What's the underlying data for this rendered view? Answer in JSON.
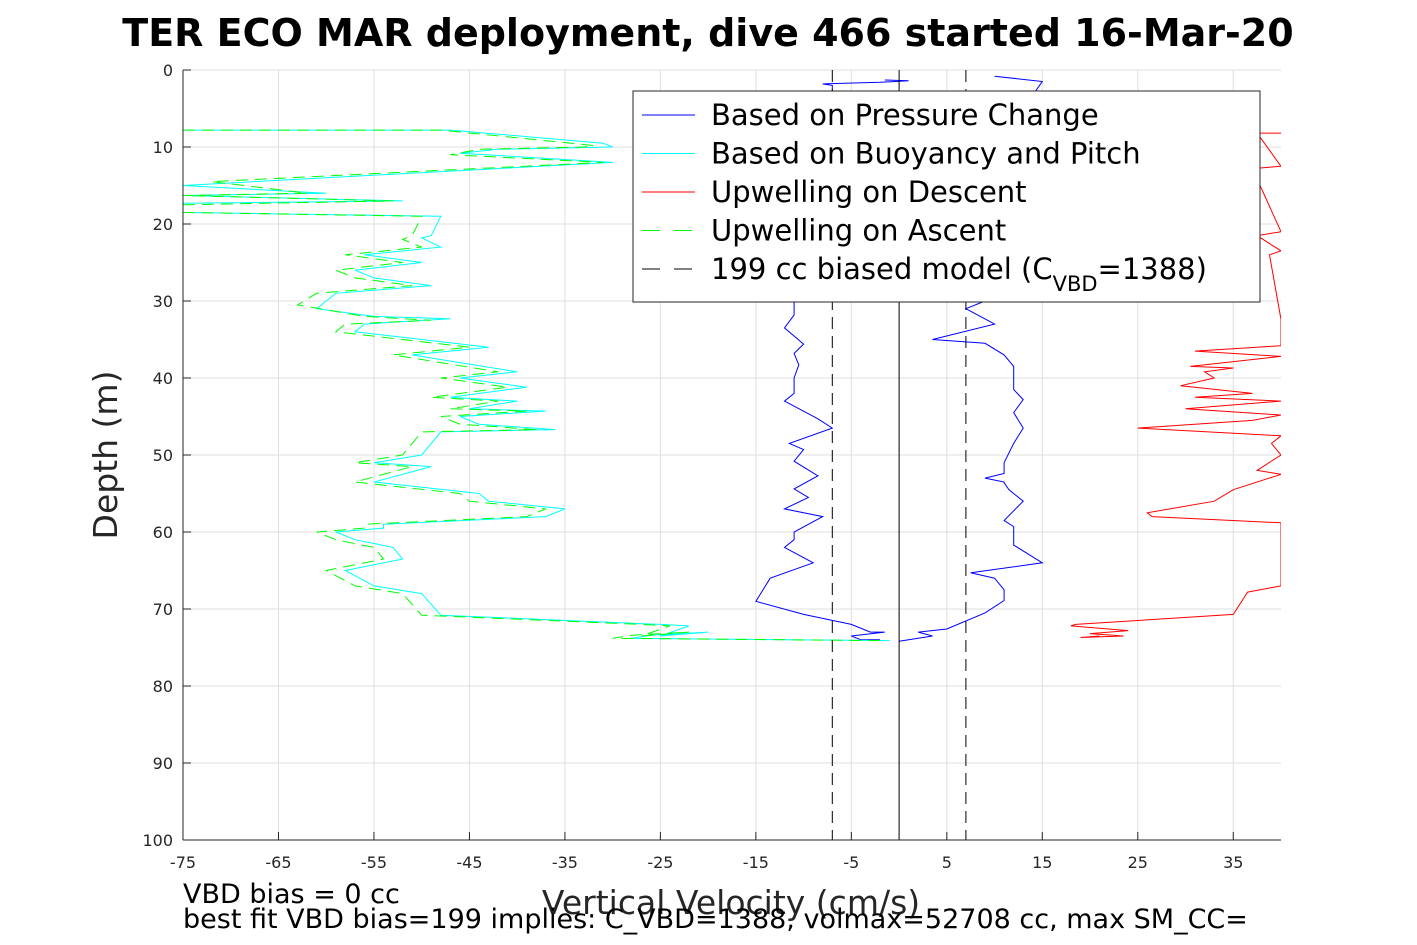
{
  "chart_data": {
    "type": "line",
    "title": "TER ECO MAR deployment, dive 466 started 16-Mar-20",
    "xlabel": "Vertical Velocity (cm/s)",
    "ylabel": "Depth (m)",
    "xlim": [
      -75,
      40
    ],
    "ylim": [
      0,
      100
    ],
    "y_reversed": true,
    "grid": true,
    "xticks": [
      -75,
      -65,
      -55,
      -45,
      -35,
      -25,
      -15,
      -5,
      5,
      15,
      25,
      35
    ],
    "yticks": [
      0,
      10,
      20,
      30,
      40,
      50,
      60,
      70,
      80,
      90,
      100
    ],
    "legend": {
      "placement": "top-right",
      "entries": [
        {
          "text": "Based on Pressure Change",
          "color": "#0000ff",
          "dash": "solid"
        },
        {
          "text": "Based on Buoyancy and Pitch",
          "color": "#00ffff",
          "dash": "solid"
        },
        {
          "text": "Upwelling on Descent",
          "color": "#ff0000",
          "dash": "solid"
        },
        {
          "text": "Upwelling on Ascent",
          "color": "#00ff00",
          "dash": "dashed"
        },
        {
          "text": "199 cc biased model (C",
          "sub": "VBD",
          "suffix": "=1388)",
          "color": "#000000",
          "dash": "dashed"
        }
      ]
    },
    "footnotes": [
      "VBD bias = 0 cc",
      "best fit VBD bias=199 implies: C_VBD=1388, volmax=52708 cc, max SM_CC="
    ],
    "series": [
      {
        "name": "Based on Pressure Change (descent)",
        "color": "#0000ff",
        "dash": "solid",
        "points": [
          [
            -1.5,
            1.3
          ],
          [
            1,
            1.4
          ],
          [
            -2,
            1.6
          ],
          [
            -8,
            1.8
          ],
          [
            -7,
            2
          ],
          [
            -7,
            20
          ],
          [
            -6.5,
            28
          ],
          [
            -11,
            30
          ],
          [
            -11,
            31
          ],
          [
            -11,
            31.8
          ],
          [
            -12,
            33.5
          ],
          [
            -10,
            35.6
          ],
          [
            -11,
            36.8
          ],
          [
            -10.5,
            38.3
          ],
          [
            -11,
            40
          ],
          [
            -11,
            42
          ],
          [
            -12,
            43
          ],
          [
            -8.5,
            45.3
          ],
          [
            -7,
            46.5
          ],
          [
            -11.5,
            48.5
          ],
          [
            -10,
            49.3
          ],
          [
            -11,
            50.8
          ],
          [
            -8.5,
            52.7
          ],
          [
            -11,
            54.4
          ],
          [
            -9.5,
            55.5
          ],
          [
            -12,
            57
          ],
          [
            -8,
            58
          ],
          [
            -11,
            60
          ],
          [
            -11,
            61
          ],
          [
            -12,
            62
          ],
          [
            -9,
            64
          ],
          [
            -13.5,
            66
          ],
          [
            -15,
            69
          ],
          [
            -10,
            70.7
          ],
          [
            -5,
            72
          ],
          [
            -3,
            73
          ],
          [
            -1.5,
            73
          ],
          [
            -5,
            73.5
          ],
          [
            -4,
            74
          ],
          [
            -2,
            74
          ]
        ]
      },
      {
        "name": "Based on Pressure Change (ascent)",
        "color": "#0000ff",
        "dash": "solid",
        "points": [
          [
            0,
            74.2
          ],
          [
            3.5,
            73.5
          ],
          [
            2,
            73
          ],
          [
            5,
            72.6
          ],
          [
            9,
            70.5
          ],
          [
            11,
            68.9
          ],
          [
            11,
            67.5
          ],
          [
            10,
            66
          ],
          [
            7.5,
            65.3
          ],
          [
            15,
            64
          ],
          [
            12,
            61.7
          ],
          [
            12,
            59.3
          ],
          [
            11,
            58.5
          ],
          [
            13,
            56
          ],
          [
            11.5,
            54.5
          ],
          [
            11,
            53.6
          ],
          [
            11,
            53.5
          ],
          [
            9,
            53
          ],
          [
            11,
            52.4
          ],
          [
            11,
            51
          ],
          [
            12,
            48.5
          ],
          [
            13,
            46.5
          ],
          [
            12,
            44.5
          ],
          [
            13,
            42.8
          ],
          [
            12,
            41.5
          ],
          [
            12,
            38.5
          ],
          [
            11,
            37
          ],
          [
            9,
            35.5
          ],
          [
            3.5,
            35
          ],
          [
            10,
            33
          ],
          [
            7,
            31
          ],
          [
            9,
            30
          ],
          [
            6.5,
            28
          ],
          [
            7,
            25
          ],
          [
            5,
            20
          ],
          [
            6,
            15
          ],
          [
            9,
            10
          ],
          [
            13,
            5
          ],
          [
            15,
            1.5
          ],
          [
            10,
            0.8
          ]
        ]
      },
      {
        "name": "Based on Buoyancy and Pitch",
        "color": "#00ffff",
        "dash": "solid",
        "points": [
          [
            -75,
            7.8
          ],
          [
            -47,
            7.8
          ],
          [
            -31,
            9.5
          ],
          [
            -30,
            10
          ],
          [
            -42,
            10.3
          ],
          [
            -46,
            10.8
          ],
          [
            -30,
            12
          ],
          [
            -75,
            15
          ],
          [
            -60,
            16
          ],
          [
            -75,
            16.3
          ],
          [
            -52,
            17
          ],
          [
            -75,
            17.3
          ],
          [
            -75,
            18.5
          ],
          [
            -48,
            19
          ],
          [
            -49,
            21.5
          ],
          [
            -50,
            21.8
          ],
          [
            -48,
            23
          ],
          [
            -56,
            24
          ],
          [
            -50,
            25
          ],
          [
            -57,
            26
          ],
          [
            -55,
            27
          ],
          [
            -49,
            28
          ],
          [
            -59,
            29
          ],
          [
            -60,
            30
          ],
          [
            -61,
            31
          ],
          [
            -55,
            32
          ],
          [
            -47,
            32.3
          ],
          [
            -56,
            33
          ],
          [
            -57,
            34
          ],
          [
            -43,
            36
          ],
          [
            -51,
            37
          ],
          [
            -46,
            38
          ],
          [
            -40,
            39.2
          ],
          [
            -46,
            40
          ],
          [
            -39,
            41.2
          ],
          [
            -47,
            42.5
          ],
          [
            -40,
            43
          ],
          [
            -45,
            44
          ],
          [
            -37,
            44.3
          ],
          [
            -46,
            45
          ],
          [
            -44,
            46
          ],
          [
            -36,
            46.7
          ],
          [
            -48,
            47
          ],
          [
            -50,
            50
          ],
          [
            -55,
            51
          ],
          [
            -49,
            51.5
          ],
          [
            -55,
            53.5
          ],
          [
            -44,
            55
          ],
          [
            -43,
            56
          ],
          [
            -35,
            57
          ],
          [
            -37,
            58
          ],
          [
            -54,
            59
          ],
          [
            -54,
            59.5
          ],
          [
            -59,
            60
          ],
          [
            -57,
            61
          ],
          [
            -53,
            62
          ],
          [
            -52,
            63.5
          ],
          [
            -58,
            65
          ],
          [
            -55,
            67
          ],
          [
            -50,
            68
          ],
          [
            -48,
            70.8
          ],
          [
            -25,
            72
          ],
          [
            -22,
            72.2
          ],
          [
            -25,
            73.5
          ],
          [
            -20,
            73
          ],
          [
            -26,
            73.4
          ],
          [
            -28,
            73.8
          ],
          [
            -1,
            74.1
          ]
        ]
      },
      {
        "name": "Upwelling on Ascent",
        "color": "#00ff00",
        "dash": "dashed",
        "points": [
          [
            -75,
            7.8
          ],
          [
            -48,
            7.8
          ],
          [
            -32,
            9.8
          ],
          [
            -33,
            10
          ],
          [
            -44,
            10.3
          ],
          [
            -47,
            11
          ],
          [
            -31,
            12
          ],
          [
            -72,
            14.5
          ],
          [
            -62,
            16
          ],
          [
            -75,
            16.3
          ],
          [
            -53,
            17
          ],
          [
            -75,
            17.5
          ],
          [
            -75,
            18.5
          ],
          [
            -50,
            19
          ],
          [
            -51,
            21.5
          ],
          [
            -52,
            22
          ],
          [
            -50,
            23
          ],
          [
            -58,
            24
          ],
          [
            -52,
            25
          ],
          [
            -59,
            26
          ],
          [
            -57,
            27
          ],
          [
            -51,
            28
          ],
          [
            -61,
            29
          ],
          [
            -63,
            30.5
          ],
          [
            -56,
            32
          ],
          [
            -49,
            32.5
          ],
          [
            -58,
            33
          ],
          [
            -59,
            34
          ],
          [
            -45,
            36
          ],
          [
            -53,
            37
          ],
          [
            -48,
            38
          ],
          [
            -42,
            39.2
          ],
          [
            -48,
            40
          ],
          [
            -41,
            41.2
          ],
          [
            -49,
            42.5
          ],
          [
            -42,
            43
          ],
          [
            -47,
            44
          ],
          [
            -39,
            44.3
          ],
          [
            -48,
            45
          ],
          [
            -46,
            46
          ],
          [
            -38,
            46.7
          ],
          [
            -50,
            47
          ],
          [
            -52,
            50
          ],
          [
            -57,
            51
          ],
          [
            -51,
            51.5
          ],
          [
            -57,
            53.5
          ],
          [
            -46,
            55
          ],
          [
            -45,
            56
          ],
          [
            -37,
            57
          ],
          [
            -39,
            58
          ],
          [
            -56,
            59
          ],
          [
            -56,
            59.5
          ],
          [
            -61,
            60
          ],
          [
            -59,
            61
          ],
          [
            -55,
            62
          ],
          [
            -54,
            63.5
          ],
          [
            -60,
            65
          ],
          [
            -57,
            67
          ],
          [
            -52,
            68
          ],
          [
            -50,
            70.8
          ],
          [
            -27,
            72
          ],
          [
            -24,
            72.2
          ],
          [
            -27,
            73.5
          ],
          [
            -22,
            73
          ],
          [
            -28,
            73.4
          ],
          [
            -30,
            73.8
          ],
          [
            -2,
            74.1
          ]
        ]
      },
      {
        "name": "Upwelling on Descent",
        "color": "#ff0000",
        "dash": "solid",
        "points": [
          [
            40,
            8.2
          ],
          [
            37.5,
            8.2
          ],
          [
            40,
            12.5
          ],
          [
            37,
            12.8
          ],
          [
            40,
            21
          ],
          [
            37.5,
            21.5
          ],
          [
            40,
            23.5
          ],
          [
            38.8,
            24
          ],
          [
            40,
            32.4
          ],
          [
            40,
            35.8
          ],
          [
            31,
            36.5
          ],
          [
            40,
            37.2
          ],
          [
            30.5,
            38.5
          ],
          [
            35,
            38.7
          ],
          [
            32,
            39.2
          ],
          [
            33,
            40
          ],
          [
            29.5,
            41
          ],
          [
            37,
            42
          ],
          [
            31,
            42.5
          ],
          [
            40,
            43
          ],
          [
            30,
            44
          ],
          [
            40,
            44.8
          ],
          [
            37,
            45.5
          ],
          [
            25,
            46.5
          ],
          [
            40,
            47.5
          ],
          [
            39,
            48.5
          ],
          [
            40,
            50
          ],
          [
            37.5,
            52
          ],
          [
            40,
            52.5
          ],
          [
            35,
            54.5
          ],
          [
            33,
            56
          ],
          [
            26,
            57.5
          ],
          [
            26.5,
            58
          ],
          [
            40,
            58.8
          ],
          [
            40,
            67
          ],
          [
            36.5,
            67.8
          ],
          [
            35,
            70.7
          ],
          [
            18.5,
            72
          ],
          [
            18,
            72.2
          ],
          [
            24,
            72.8
          ],
          [
            20,
            73.2
          ],
          [
            23.5,
            73.5
          ],
          [
            19,
            73.7
          ],
          [
            21,
            73.5
          ]
        ]
      },
      {
        "name": "199 cc biased model (descent)",
        "color": "#000000",
        "dash": "dashed",
        "points": [
          [
            -7,
            0
          ],
          [
            -7,
            100
          ]
        ]
      },
      {
        "name": "199 cc biased model (ascent)",
        "color": "#000000",
        "dash": "dashed",
        "points": [
          [
            7,
            0
          ],
          [
            7,
            100
          ]
        ]
      },
      {
        "name": "zero line",
        "color": "#000000",
        "dash": "solid",
        "points": [
          [
            0,
            0
          ],
          [
            0,
            100
          ]
        ]
      }
    ]
  }
}
